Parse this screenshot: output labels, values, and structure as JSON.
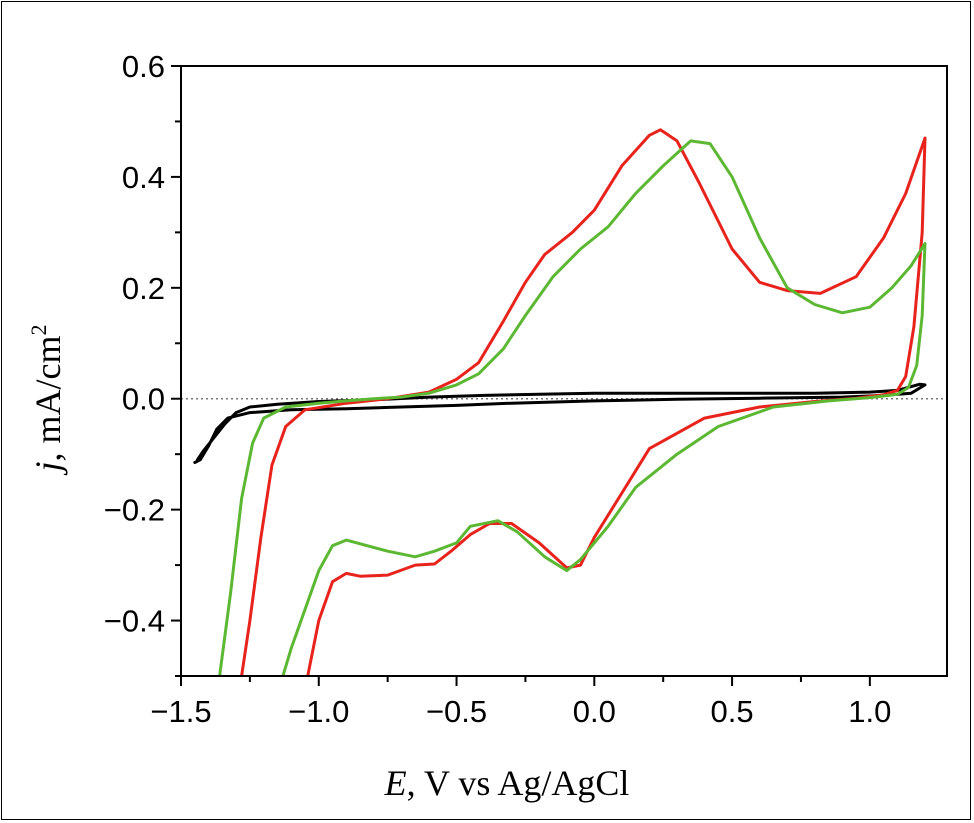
{
  "chart_data": {
    "type": "line",
    "title": "",
    "xlabel": {
      "symbol": "E",
      "rest": ", V vs Ag/AgCl"
    },
    "ylabel": {
      "symbol": "j",
      "rest": ", mA/cm",
      "sup": "2"
    },
    "xlim": [
      -1.5,
      1.28
    ],
    "ylim": [
      -0.5,
      0.6
    ],
    "x_ticks": [
      -1.5,
      -1.0,
      -0.5,
      0.0,
      0.5,
      1.0
    ],
    "x_tick_labels": [
      "−1.5",
      "−1.0",
      "−0.5",
      "0.0",
      "0.5",
      "1.0"
    ],
    "y_ticks": [
      -0.4,
      -0.2,
      0.0,
      0.2,
      0.4,
      0.6
    ],
    "y_tick_labels": [
      "−0.4",
      "−0.2",
      "0.0",
      "0.2",
      "0.4",
      "0.6"
    ],
    "grid": false,
    "legend": "none",
    "zero_line": {
      "y": 0.0,
      "style": "dotted",
      "color": "#777777"
    },
    "series": [
      {
        "color": "#000000",
        "x": [
          -1.45,
          -1.43,
          -1.4,
          -1.37,
          -1.33,
          -1.25,
          -1.1,
          -0.9,
          -0.7,
          -0.5,
          -0.3,
          0.0,
          0.3,
          0.6,
          0.9,
          1.05,
          1.15,
          1.2,
          1.18,
          1.1,
          1.0,
          0.8,
          0.6,
          0.3,
          0.0,
          -0.2,
          -0.4,
          -0.6,
          -0.8,
          -1.0,
          -1.15,
          -1.25,
          -1.3,
          -1.34,
          -1.38,
          -1.42,
          -1.44
        ],
        "y": [
          -0.115,
          -0.11,
          -0.085,
          -0.055,
          -0.035,
          -0.025,
          -0.02,
          -0.018,
          -0.015,
          -0.012,
          -0.008,
          -0.004,
          -0.001,
          0.001,
          0.003,
          0.006,
          0.01,
          0.025,
          0.026,
          0.015,
          0.012,
          0.01,
          0.01,
          0.01,
          0.01,
          0.008,
          0.006,
          0.003,
          -0.002,
          -0.005,
          -0.01,
          -0.015,
          -0.025,
          -0.045,
          -0.07,
          -0.095,
          -0.11
        ]
      },
      {
        "color": "#e8231c",
        "x": [
          -1.28,
          -1.25,
          -1.21,
          -1.17,
          -1.12,
          -1.05,
          -0.9,
          -0.75,
          -0.6,
          -0.5,
          -0.42,
          -0.33,
          -0.25,
          -0.18,
          -0.08,
          0.0,
          0.1,
          0.2,
          0.24,
          0.3,
          0.38,
          0.5,
          0.6,
          0.7,
          0.82,
          0.95,
          1.05,
          1.13,
          1.2,
          1.19,
          1.16,
          1.13,
          1.1,
          1.05,
          0.95,
          0.8,
          0.6,
          0.4,
          0.2,
          0.1,
          0.0,
          -0.05,
          -0.1,
          -0.2,
          -0.3,
          -0.38,
          -0.45,
          -0.52,
          -0.58,
          -0.65,
          -0.75,
          -0.85,
          -0.9,
          -0.95,
          -1.0,
          -1.04
        ],
        "y": [
          -0.5,
          -0.4,
          -0.25,
          -0.12,
          -0.05,
          -0.02,
          -0.008,
          0.0,
          0.012,
          0.035,
          0.065,
          0.14,
          0.21,
          0.26,
          0.3,
          0.34,
          0.42,
          0.475,
          0.485,
          0.465,
          0.39,
          0.27,
          0.21,
          0.195,
          0.19,
          0.22,
          0.29,
          0.37,
          0.47,
          0.3,
          0.13,
          0.04,
          0.015,
          0.007,
          0.001,
          -0.005,
          -0.015,
          -0.035,
          -0.09,
          -0.17,
          -0.25,
          -0.3,
          -0.305,
          -0.26,
          -0.225,
          -0.225,
          -0.245,
          -0.275,
          -0.298,
          -0.3,
          -0.318,
          -0.32,
          -0.315,
          -0.33,
          -0.4,
          -0.5
        ]
      },
      {
        "color": "#5cb832",
        "x": [
          -1.36,
          -1.32,
          -1.28,
          -1.24,
          -1.2,
          -1.12,
          -1.0,
          -0.9,
          -0.8,
          -0.7,
          -0.6,
          -0.5,
          -0.42,
          -0.33,
          -0.25,
          -0.15,
          -0.05,
          0.05,
          0.15,
          0.25,
          0.35,
          0.42,
          0.5,
          0.6,
          0.7,
          0.8,
          0.9,
          1.0,
          1.08,
          1.15,
          1.2,
          1.19,
          1.17,
          1.14,
          1.1,
          1.0,
          0.85,
          0.65,
          0.45,
          0.3,
          0.15,
          0.05,
          -0.05,
          -0.1,
          -0.18,
          -0.28,
          -0.35,
          -0.45,
          -0.5,
          -0.58,
          -0.65,
          -0.75,
          -0.9,
          -0.95,
          -1.0,
          -1.05,
          -1.1,
          -1.13
        ],
        "y": [
          -0.5,
          -0.35,
          -0.18,
          -0.08,
          -0.035,
          -0.015,
          -0.008,
          -0.004,
          0.0,
          0.003,
          0.01,
          0.025,
          0.045,
          0.09,
          0.15,
          0.22,
          0.27,
          0.31,
          0.37,
          0.42,
          0.465,
          0.46,
          0.4,
          0.29,
          0.2,
          0.17,
          0.155,
          0.165,
          0.2,
          0.24,
          0.28,
          0.15,
          0.06,
          0.02,
          0.008,
          0.002,
          -0.004,
          -0.015,
          -0.05,
          -0.1,
          -0.16,
          -0.23,
          -0.29,
          -0.31,
          -0.285,
          -0.24,
          -0.22,
          -0.23,
          -0.26,
          -0.275,
          -0.285,
          -0.275,
          -0.255,
          -0.265,
          -0.31,
          -0.38,
          -0.45,
          -0.5
        ]
      }
    ]
  }
}
